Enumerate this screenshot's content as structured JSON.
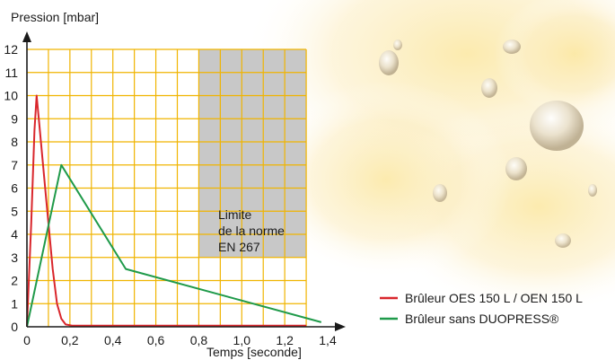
{
  "chart_data": {
    "type": "line",
    "title": "",
    "ylabel": "Pression [mbar]",
    "xlabel": "Temps [seconde]",
    "xlim": [
      0,
      1.4
    ],
    "ylim": [
      0,
      12
    ],
    "x_ticks": [
      0,
      0.2,
      0.4,
      0.6,
      0.8,
      1.0,
      1.2,
      1.4
    ],
    "x_tick_labels": [
      "0",
      "0,2",
      "0,4",
      "0,6",
      "0,8",
      "1,0",
      "1,2",
      "1,4"
    ],
    "y_ticks": [
      0,
      1,
      2,
      3,
      4,
      5,
      6,
      7,
      8,
      9,
      10,
      11,
      12
    ],
    "y_tick_labels": [
      "0",
      "1",
      "2",
      "3",
      "4",
      "5",
      "6",
      "7",
      "8",
      "9",
      "10",
      "11",
      "12"
    ],
    "grid": true,
    "legend_position": "bottom-right",
    "limit_region": {
      "x_range": [
        0.8,
        1.3
      ],
      "y_range": [
        3,
        12
      ],
      "label_lines": [
        "Limite",
        "de la norme",
        "EN 267"
      ],
      "color": "#c8c8c8"
    },
    "series": [
      {
        "name": "Brûleur OES 150 L / OEN 150 L",
        "color": "#d9262c",
        "points": [
          [
            0,
            0
          ],
          [
            0.02,
            4.5
          ],
          [
            0.035,
            8.5
          ],
          [
            0.045,
            10.0
          ],
          [
            0.06,
            8.5
          ],
          [
            0.09,
            5.5
          ],
          [
            0.12,
            2.5
          ],
          [
            0.14,
            1.0
          ],
          [
            0.16,
            0.35
          ],
          [
            0.18,
            0.1
          ],
          [
            0.21,
            0.05
          ],
          [
            0.5,
            0.05
          ],
          [
            1.3,
            0.05
          ]
        ]
      },
      {
        "name": "Brûleur sans DUOPRESS®",
        "color": "#1f9a4a",
        "points": [
          [
            0,
            0
          ],
          [
            0.16,
            7.0
          ],
          [
            0.46,
            2.5
          ],
          [
            1.37,
            0.2
          ]
        ]
      }
    ]
  }
}
